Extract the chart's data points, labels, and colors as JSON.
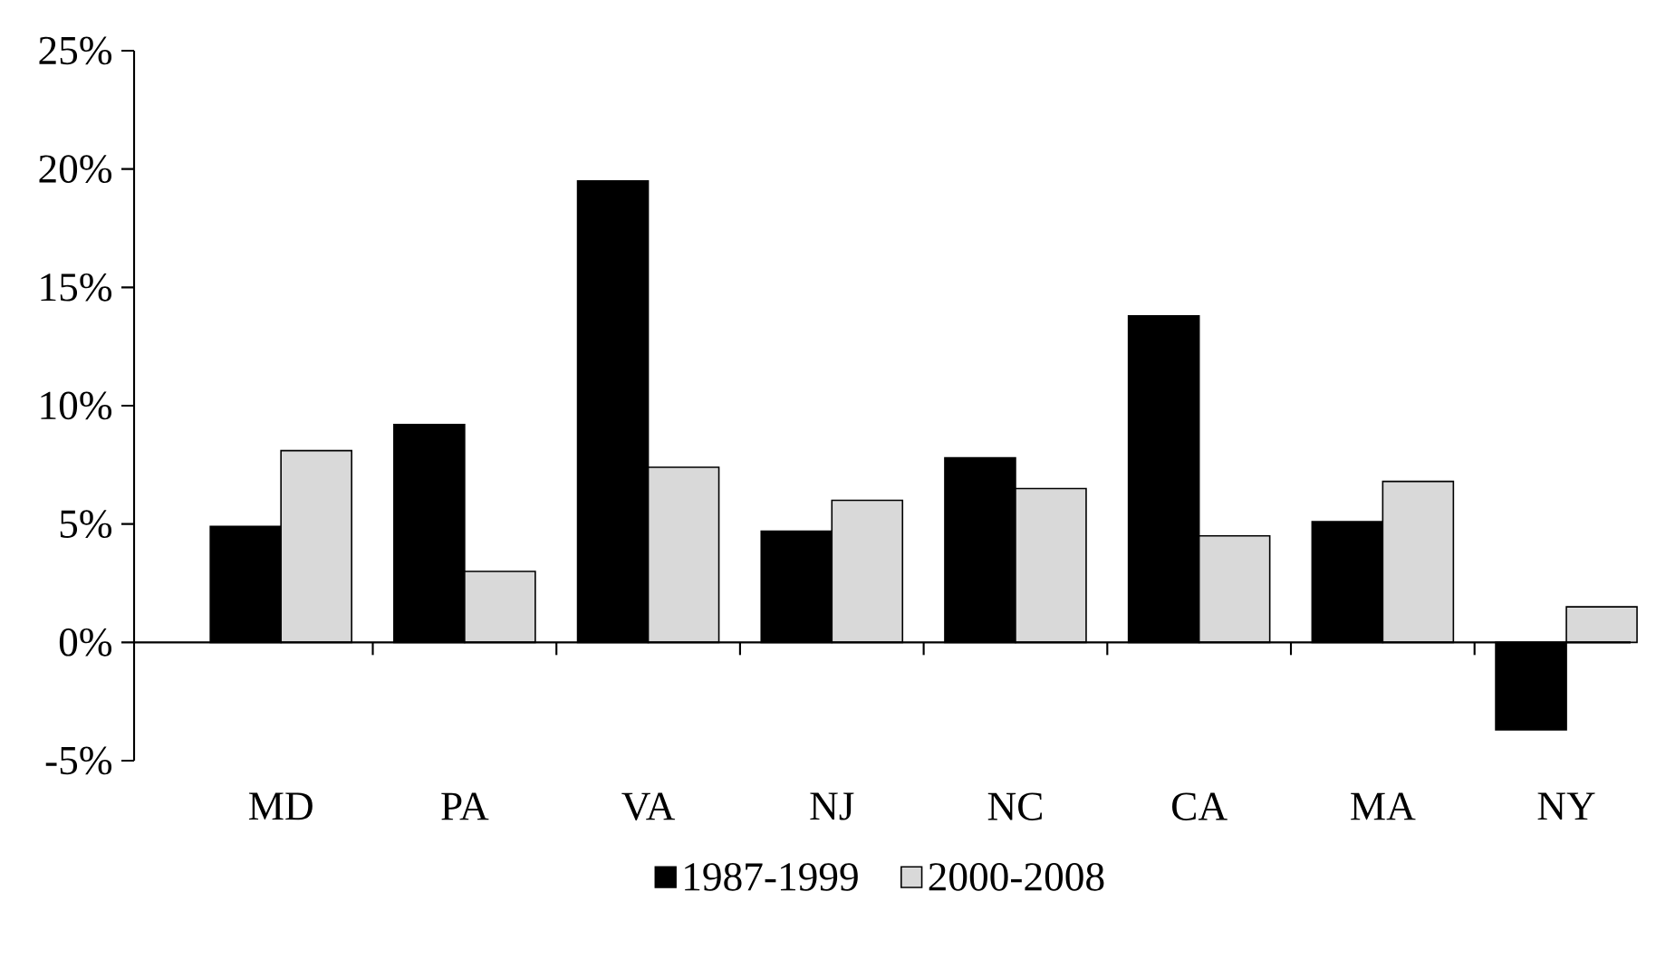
{
  "chart_data": {
    "type": "bar",
    "categories": [
      "MD",
      "PA",
      "VA",
      "NJ",
      "NC",
      "CA",
      "MA",
      "NY"
    ],
    "series": [
      {
        "name": "1987-1999",
        "color": "#000000",
        "values": [
          4.9,
          9.2,
          19.5,
          4.7,
          7.8,
          13.8,
          5.1,
          -3.7
        ]
      },
      {
        "name": "2000-2008",
        "color": "#d9d9d9",
        "values": [
          8.1,
          3.0,
          7.4,
          6.0,
          6.5,
          4.5,
          6.8,
          1.5
        ]
      }
    ],
    "ylim": [
      -5,
      25
    ],
    "yticks": [
      {
        "value": -5,
        "label": "-5%"
      },
      {
        "value": 0,
        "label": "0%"
      },
      {
        "value": 5,
        "label": "5%"
      },
      {
        "value": 10,
        "label": "10%"
      },
      {
        "value": 15,
        "label": "15%"
      },
      {
        "value": 20,
        "label": "20%"
      },
      {
        "value": 25,
        "label": "25%"
      }
    ],
    "legend": "bottom"
  }
}
